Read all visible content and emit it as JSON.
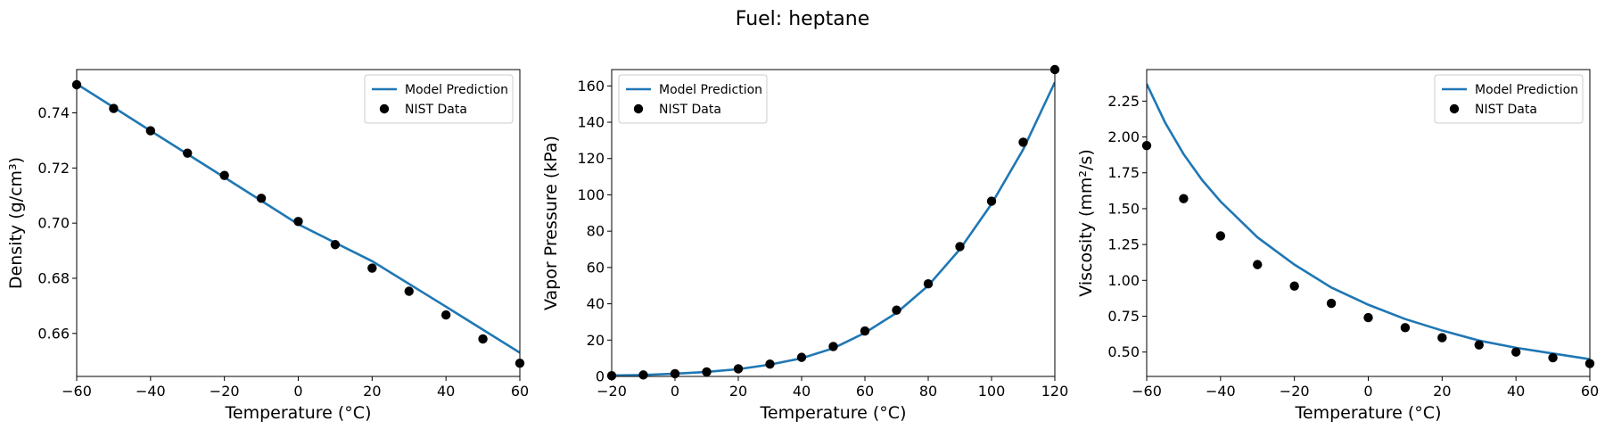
{
  "figure": {
    "title": "Fuel: heptane"
  },
  "colors": {
    "model_line": "#1f77b4",
    "nist_marker": "#000000",
    "legend_border": "#cccccc"
  },
  "chart_data": [
    {
      "type": "line",
      "xlabel": "Temperature (°C)",
      "ylabel": "Density (g/cm³)",
      "xlim": [
        -60,
        60
      ],
      "ylim": [
        0.6444,
        0.7557
      ],
      "xticks": [
        -60,
        -40,
        -20,
        0,
        20,
        40,
        60
      ],
      "xtick_labels": [
        "−60",
        "−40",
        "−20",
        "0",
        "20",
        "40",
        "60"
      ],
      "yticks": [
        0.66,
        0.68,
        0.7,
        0.72,
        0.74
      ],
      "ytick_labels": [
        "0.66",
        "0.68",
        "0.70",
        "0.72",
        "0.74"
      ],
      "legend": {
        "position": "upper-right",
        "entries": [
          "Model Prediction",
          "NIST Data"
        ]
      },
      "series": [
        {
          "name": "Model Prediction",
          "kind": "line",
          "x": [
            -60,
            -40,
            -20,
            0,
            20,
            40,
            60
          ],
          "y": [
            0.7505,
            0.7335,
            0.7166,
            0.6996,
            0.6862,
            0.6697,
            0.653
          ]
        },
        {
          "name": "NIST Data",
          "kind": "scatter",
          "x": [
            -60,
            -50,
            -40,
            -30,
            -20,
            -10,
            0,
            10,
            20,
            30,
            40,
            50,
            60
          ],
          "y": [
            0.7502,
            0.7416,
            0.7335,
            0.7254,
            0.7173,
            0.709,
            0.7006,
            0.6922,
            0.6837,
            0.6753,
            0.6667,
            0.658,
            0.6492
          ]
        }
      ]
    },
    {
      "type": "line",
      "xlabel": "Temperature (°C)",
      "ylabel": "Vapor Pressure (kPa)",
      "xlim": [
        -20,
        120
      ],
      "ylim": [
        0,
        169
      ],
      "xticks": [
        -20,
        0,
        20,
        40,
        60,
        80,
        100,
        120
      ],
      "xtick_labels": [
        "−20",
        "0",
        "20",
        "40",
        "60",
        "80",
        "100",
        "120"
      ],
      "yticks": [
        0,
        20,
        40,
        60,
        80,
        100,
        120,
        140,
        160
      ],
      "ytick_labels": [
        "0",
        "20",
        "40",
        "60",
        "80",
        "100",
        "120",
        "140",
        "160"
      ],
      "legend": {
        "position": "upper-left",
        "entries": [
          "Model Prediction",
          "NIST Data"
        ]
      },
      "series": [
        {
          "name": "Model Prediction",
          "kind": "line",
          "x": [
            -20,
            -10,
            0,
            10,
            20,
            30,
            40,
            50,
            60,
            70,
            80,
            90,
            100,
            110,
            120
          ],
          "y": [
            0.5,
            0.8,
            1.5,
            2.5,
            4.0,
            6.5,
            10.0,
            15.5,
            24.0,
            35.0,
            50.0,
            70.0,
            95.0,
            125.0,
            162.0
          ]
        },
        {
          "name": "NIST Data",
          "kind": "scatter",
          "x": [
            -20,
            -10,
            0,
            10,
            20,
            30,
            40,
            50,
            60,
            70,
            80,
            90,
            100,
            110,
            120
          ],
          "y": [
            0.4,
            0.8,
            1.5,
            2.5,
            4.2,
            6.8,
            10.5,
            16.5,
            25.0,
            36.5,
            51.0,
            71.5,
            96.5,
            129.0,
            169.0
          ]
        }
      ]
    },
    {
      "type": "line",
      "xlabel": "Temperature (°C)",
      "ylabel": "Viscosity (mm²/s)",
      "xlim": [
        -60,
        60
      ],
      "ylim": [
        0.33,
        2.47
      ],
      "xticks": [
        -60,
        -40,
        -20,
        0,
        20,
        40,
        60
      ],
      "xtick_labels": [
        "−60",
        "−40",
        "−20",
        "0",
        "20",
        "40",
        "60"
      ],
      "yticks": [
        0.5,
        0.75,
        1.0,
        1.25,
        1.5,
        1.75,
        2.0,
        2.25
      ],
      "ytick_labels": [
        "0.50",
        "0.75",
        "1.00",
        "1.25",
        "1.50",
        "1.75",
        "2.00",
        "2.25"
      ],
      "legend": {
        "position": "upper-right",
        "entries": [
          "Model Prediction",
          "NIST Data"
        ]
      },
      "series": [
        {
          "name": "Model Prediction",
          "kind": "line",
          "x": [
            -60,
            -55,
            -50,
            -45,
            -40,
            -30,
            -20,
            -10,
            0,
            10,
            20,
            30,
            40,
            50,
            60
          ],
          "y": [
            2.37,
            2.1,
            1.88,
            1.7,
            1.55,
            1.3,
            1.11,
            0.95,
            0.83,
            0.73,
            0.65,
            0.58,
            0.53,
            0.49,
            0.45
          ]
        },
        {
          "name": "NIST Data",
          "kind": "scatter",
          "x": [
            -60,
            -50,
            -40,
            -30,
            -20,
            -10,
            0,
            10,
            20,
            30,
            40,
            50,
            60
          ],
          "y": [
            1.94,
            1.57,
            1.31,
            1.11,
            0.96,
            0.84,
            0.74,
            0.67,
            0.6,
            0.55,
            0.5,
            0.46,
            0.42
          ]
        }
      ]
    }
  ]
}
